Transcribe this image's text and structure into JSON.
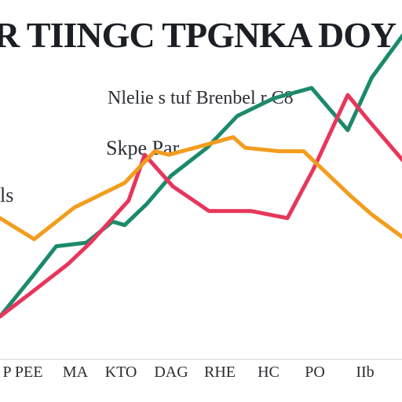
{
  "chart_data": {
    "type": "line",
    "title": "R TIINGC TPGNKA DOY GLO",
    "annotations": [
      "Nlelie s tuf Brenbel r C8",
      "Skpe Par",
      "ls"
    ],
    "xlabel": "",
    "ylabel": "",
    "x": [
      0,
      1,
      2,
      3,
      4,
      5,
      6,
      7,
      8,
      9,
      10,
      11,
      12,
      13,
      14,
      15,
      16,
      17,
      18,
      19,
      20
    ],
    "x_tick_labels": [
      "P PEE",
      "MA",
      "KTO",
      "DAG",
      "RHE",
      "HC",
      "PO",
      "IIb"
    ],
    "ylim": [
      0,
      100
    ],
    "grid": false,
    "legend": "none",
    "series": [
      {
        "color": "#1b8a6b",
        "x": [
          0,
          1.7,
          2.8,
          4.3,
          5.6,
          6.2,
          7.3,
          8.5,
          10.3,
          11.8,
          13.6,
          15.5,
          17.3,
          18.5,
          20.3
        ],
        "values": [
          10,
          22,
          30,
          31,
          37,
          36,
          42,
          50,
          58,
          67,
          72,
          75,
          63,
          78,
          92
        ]
      },
      {
        "color": "#e8365b",
        "x": [
          0,
          1.6,
          3.4,
          4.5,
          6.4,
          7.2,
          8.6,
          10.4,
          12.5,
          14.3,
          15.6,
          17.3,
          18.3,
          20.4
        ],
        "values": [
          10,
          17,
          25,
          31,
          43,
          56,
          47,
          40,
          40,
          38,
          52,
          73,
          66,
          52
        ]
      },
      {
        "color": "#f39c1e",
        "x": [
          0,
          1.7,
          3.7,
          6.2,
          7.7,
          8.4,
          9.7,
          11.6,
          12.2,
          13.9,
          15.1,
          17.5,
          18.5,
          20.4
        ],
        "values": [
          38,
          32,
          41,
          48,
          57,
          56,
          58,
          61,
          58,
          57,
          57,
          44,
          39,
          31
        ]
      }
    ]
  }
}
